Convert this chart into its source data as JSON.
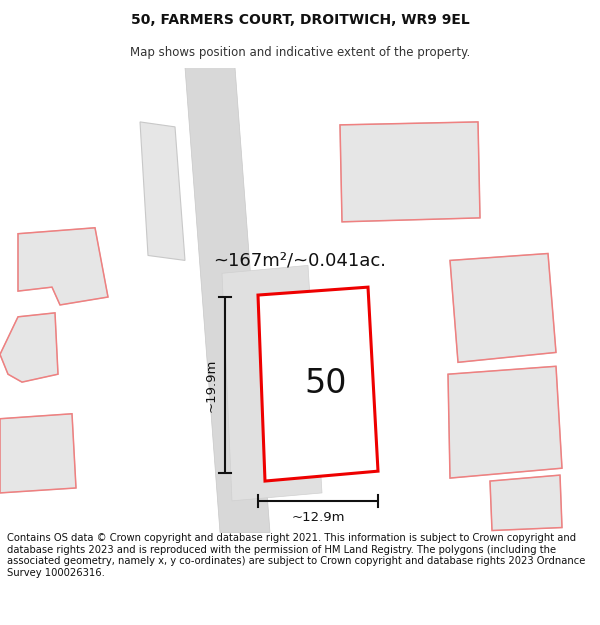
{
  "title": "50, FARMERS COURT, DROITWICH, WR9 9EL",
  "subtitle": "Map shows position and indicative extent of the property.",
  "area_label": "~167m²/~0.041ac.",
  "width_label": "~12.9m",
  "height_label": "~19.9m",
  "number_label": "50",
  "footer": "Contains OS data © Crown copyright and database right 2021. This information is subject to Crown copyright and database rights 2023 and is reproduced with the permission of HM Land Registry. The polygons (including the associated geometry, namely x, y co-ordinates) are subject to Crown copyright and database rights 2023 Ordnance Survey 100026316.",
  "bg_color": "#ffffff",
  "building_fill": "#e6e6e6",
  "building_edge": "#c8c8c8",
  "road_fill": "#d8d8d8",
  "red_plot_color": "#ee0000",
  "red_other_color": "#f08080",
  "title_fontsize": 10,
  "subtitle_fontsize": 8.5,
  "footer_fontsize": 7.2,
  "label_fontsize": 13,
  "number_fontsize": 24,
  "dim_fontsize": 9.5
}
